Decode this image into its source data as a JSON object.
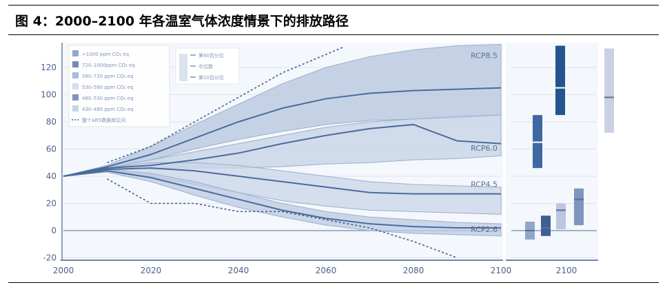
{
  "title": "图 4：2000–2100 年各温室气体浓度情景下的排放路径",
  "chart_data": {
    "type": "area",
    "title": "",
    "xlabel": "",
    "ylabel": "",
    "xlim": [
      2000,
      2100
    ],
    "ylim": [
      -20,
      140
    ],
    "grid": true,
    "x_ticks": [
      "2000",
      "2020",
      "2040",
      "2060",
      "2080",
      "2100"
    ],
    "y_ticks": [
      "-20",
      "0",
      "20",
      "40",
      "60",
      "80",
      "100",
      "120"
    ],
    "legend_position": "top-left",
    "legend": [
      {
        "label": ">1000   ppm CO₂ eq",
        "color": "#8fa7c9"
      },
      {
        "label": "720–1000ppm CO₂ eq",
        "color": "#6f8dbb"
      },
      {
        "label": "580–720  ppm CO₂ eq",
        "color": "#a9bddb"
      },
      {
        "label": "530–580  ppm CO₂ eq",
        "color": "#d3deee"
      },
      {
        "label": "480–530  ppm CO₂ eq",
        "color": "#7d95bf"
      },
      {
        "label": "430–480  ppm CO₂ eq",
        "color": "#c6d3e8"
      },
      {
        "label": "整个AR5数据库区间",
        "color": "#3e5f92"
      }
    ],
    "legend2": [
      "第90百分位",
      "中位数",
      "第10百分位"
    ],
    "x": [
      2000,
      2010,
      2020,
      2030,
      2040,
      2050,
      2060,
      2070,
      2080,
      2090,
      2100
    ],
    "series": [
      {
        "name": "RCP8.5",
        "upper": [
          40,
          48,
          62,
          78,
          93,
          108,
          120,
          128,
          133,
          136,
          137
        ],
        "lower": [
          40,
          46,
          52,
          60,
          67,
          73,
          78,
          81,
          82,
          83,
          85
        ],
        "median": [
          40,
          47,
          56,
          68,
          80,
          90,
          97,
          101,
          103,
          104,
          105
        ]
      },
      {
        "name": "RCP6.0",
        "upper": [
          40,
          46,
          52,
          58,
          64,
          70,
          76,
          80,
          82,
          84,
          85
        ],
        "lower": [
          40,
          45,
          46,
          46,
          46,
          47,
          49,
          50,
          52,
          53,
          55
        ],
        "median": [
          40,
          46,
          48,
          52,
          57,
          64,
          70,
          75,
          78,
          66,
          64
        ]
      },
      {
        "name": "RCP4.5",
        "upper": [
          40,
          46,
          50,
          50,
          48,
          44,
          40,
          36,
          34,
          33,
          32
        ],
        "lower": [
          40,
          44,
          40,
          34,
          28,
          22,
          18,
          15,
          14,
          13,
          12
        ],
        "median": [
          40,
          45,
          46,
          44,
          40,
          36,
          32,
          28,
          27,
          27,
          27
        ]
      },
      {
        "name": "RCP2.6",
        "upper": [
          40,
          45,
          42,
          36,
          28,
          20,
          14,
          10,
          8,
          6,
          5
        ],
        "lower": [
          40,
          43,
          36,
          26,
          17,
          10,
          4,
          0,
          -2,
          -3,
          -4
        ],
        "median": [
          40,
          44,
          39,
          31,
          23,
          15,
          9,
          5,
          3,
          2,
          2
        ]
      }
    ],
    "ar5_range": {
      "upper": {
        "x": [
          2010,
          2020,
          2030,
          2040,
          2050,
          2064
        ],
        "y": [
          50,
          62,
          80,
          98,
          116,
          135
        ]
      },
      "lower": {
        "x": [
          2010,
          2020,
          2030,
          2040,
          2050,
          2060,
          2070,
          2080,
          2090
        ],
        "y": [
          38,
          20,
          20,
          14,
          14,
          8,
          2,
          -8,
          -20
        ]
      }
    },
    "side_panel": {
      "x_tick": "2100",
      "bars": [
        {
          "low": -6.6,
          "median": 0,
          "high": 6.6,
          "color": "#8fa7c9"
        },
        {
          "low": -4,
          "median": 2,
          "high": 11,
          "color": "#3e5f92"
        },
        {
          "low": 1,
          "median": 15,
          "high": 20,
          "color": "#b9c8df"
        },
        {
          "low": 4,
          "median": 23,
          "high": 31,
          "color": "#7d95bf"
        },
        {
          "low": 46,
          "median": 65,
          "high": 85,
          "color": "#3f68a3"
        },
        {
          "low": 85,
          "median": 105,
          "high": 136,
          "color": "#24548f"
        },
        {
          "low": 72,
          "median": 98,
          "high": 134,
          "color": "#c8d2e0"
        }
      ]
    }
  }
}
